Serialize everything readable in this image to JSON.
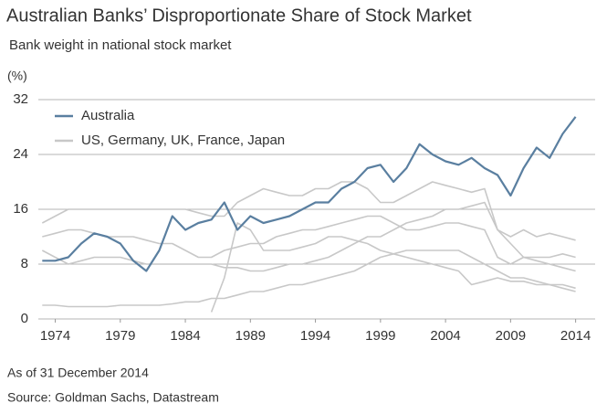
{
  "chart_data": {
    "type": "line",
    "title": "Australian Banks’ Disproportionate Share of Stock Market",
    "subtitle": "Bank weight in national stock market",
    "y_unit_label": "(%)",
    "footnote": "As of 31 December 2014",
    "source": "Source: Goldman Sachs, Datastream",
    "x": [
      1973,
      1974,
      1975,
      1976,
      1977,
      1978,
      1979,
      1980,
      1981,
      1982,
      1983,
      1984,
      1985,
      1986,
      1987,
      1988,
      1989,
      1990,
      1991,
      1992,
      1993,
      1994,
      1995,
      1996,
      1997,
      1998,
      1999,
      2000,
      2001,
      2002,
      2003,
      2004,
      2005,
      2006,
      2007,
      2008,
      2009,
      2010,
      2011,
      2012,
      2013,
      2014
    ],
    "series": [
      {
        "color": "#c8c8c8",
        "values": [
          14,
          15,
          16,
          16,
          16,
          16,
          16,
          16,
          16,
          16,
          16,
          16,
          15.5,
          15,
          15,
          17,
          18,
          19,
          18.5,
          18,
          18,
          19,
          19,
          20,
          20,
          19,
          17,
          17,
          18,
          19,
          20,
          19.5,
          19,
          18.5,
          19,
          13,
          12,
          13,
          12,
          12.5,
          12,
          11.5
        ]
      },
      {
        "color": "#c8c8c8",
        "values": [
          12,
          12.5,
          13,
          13,
          12.5,
          12,
          12,
          12,
          11.5,
          11,
          11,
          10,
          9,
          9,
          10,
          10.5,
          11,
          11,
          12,
          12.5,
          13,
          13,
          13.5,
          14,
          14.5,
          15,
          15,
          14,
          13,
          13,
          13.5,
          14,
          14,
          13.5,
          13,
          9,
          8,
          9,
          9,
          9,
          9.5,
          9
        ]
      },
      {
        "color": "#c8c8c8",
        "values": [
          10,
          9,
          8,
          8.5,
          9,
          9,
          9,
          8.5,
          8,
          8,
          8,
          8,
          8,
          8,
          7.5,
          7.5,
          7,
          7,
          7.5,
          8,
          8,
          8.5,
          9,
          10,
          11,
          12,
          12,
          13,
          14,
          14.5,
          15,
          16,
          16,
          16.5,
          17,
          13,
          11,
          9,
          8.5,
          8,
          7.5,
          7
        ]
      },
      {
        "color": "#c8c8c8",
        "values": [
          2,
          2,
          1.8,
          1.8,
          1.8,
          1.8,
          2,
          2,
          2,
          2,
          2.2,
          2.5,
          2.5,
          3,
          3,
          3.5,
          4,
          4,
          4.5,
          5,
          5,
          5.5,
          6,
          6.5,
          7,
          8,
          9,
          9.5,
          10,
          10,
          10,
          10,
          10,
          9,
          8,
          7,
          6,
          6,
          5.5,
          5,
          4.5,
          4
        ]
      },
      {
        "color": "#c8c8c8",
        "values": [
          null,
          null,
          null,
          null,
          null,
          null,
          null,
          null,
          null,
          null,
          null,
          null,
          null,
          1,
          6,
          14,
          13,
          10,
          10,
          10,
          10.5,
          11,
          12,
          12,
          11.5,
          11,
          10,
          9.5,
          9,
          8.5,
          8,
          7.5,
          7,
          5,
          5.5,
          6,
          5.5,
          5.5,
          5,
          5,
          5,
          4.5
        ]
      },
      {
        "name": "Australia",
        "color": "#5a7fa0",
        "values": [
          8.5,
          8.5,
          9,
          11,
          12.5,
          12,
          11,
          8.5,
          7,
          10,
          15,
          13,
          14,
          14.5,
          17,
          13,
          15,
          14,
          14.5,
          15,
          16,
          17,
          17,
          19,
          20,
          22,
          22.5,
          20,
          22,
          25.5,
          24,
          23,
          22.5,
          23.5,
          22,
          21,
          18,
          22,
          25,
          23.5,
          27,
          29.5
        ]
      }
    ],
    "legend": [
      {
        "name": "Australia",
        "color": "#5a7fa0"
      },
      {
        "name": "US, Germany, UK, France, Japan",
        "color": "#c8c8c8"
      }
    ],
    "xlim": [
      1972.7,
      2015.5
    ],
    "xticks": [
      1974,
      1979,
      1984,
      1989,
      1994,
      1999,
      2004,
      2009,
      2014
    ],
    "ylim": [
      0,
      32
    ],
    "yticks": [
      0,
      8,
      16,
      24,
      32
    ],
    "grid": true
  }
}
